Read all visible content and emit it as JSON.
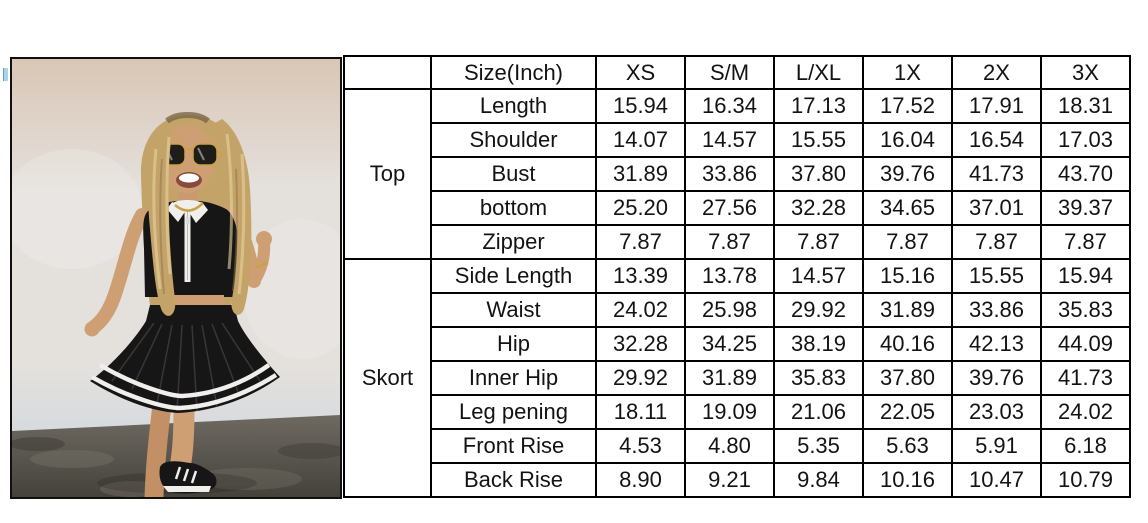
{
  "page": {
    "background": "#ffffff"
  },
  "photo": {
    "alt": "Model in black sleeveless half-zip crop top and black pleated skort with double white hem stripes, standing against a white wall on dark concrete"
  },
  "chart_data": {
    "type": "table",
    "header": {
      "corner": "",
      "size_label": "Size(Inch)",
      "sizes": [
        "XS",
        "S/M",
        "L/XL",
        "1X",
        "2X",
        "3X"
      ]
    },
    "groups": [
      {
        "name": "Top",
        "rows": [
          {
            "label": "Length",
            "values": [
              "15.94",
              "16.34",
              "17.13",
              "17.52",
              "17.91",
              "18.31"
            ]
          },
          {
            "label": "Shoulder",
            "values": [
              "14.07",
              "14.57",
              "15.55",
              "16.04",
              "16.54",
              "17.03"
            ]
          },
          {
            "label": "Bust",
            "values": [
              "31.89",
              "33.86",
              "37.80",
              "39.76",
              "41.73",
              "43.70"
            ]
          },
          {
            "label": "bottom",
            "values": [
              "25.20",
              "27.56",
              "32.28",
              "34.65",
              "37.01",
              "39.37"
            ]
          },
          {
            "label": "Zipper",
            "values": [
              "7.87",
              "7.87",
              "7.87",
              "7.87",
              "7.87",
              "7.87"
            ]
          }
        ]
      },
      {
        "name": "Skort",
        "rows": [
          {
            "label": "Side Length",
            "values": [
              "13.39",
              "13.78",
              "14.57",
              "15.16",
              "15.55",
              "15.94"
            ]
          },
          {
            "label": "Waist",
            "values": [
              "24.02",
              "25.98",
              "29.92",
              "31.89",
              "33.86",
              "35.83"
            ]
          },
          {
            "label": "Hip",
            "values": [
              "32.28",
              "34.25",
              "38.19",
              "40.16",
              "42.13",
              "44.09"
            ]
          },
          {
            "label": "Inner Hip",
            "values": [
              "29.92",
              "31.89",
              "35.83",
              "37.80",
              "39.76",
              "41.73"
            ]
          },
          {
            "label": "Leg pening",
            "values": [
              "18.11",
              "19.09",
              "21.06",
              "22.05",
              "23.03",
              "24.02"
            ]
          },
          {
            "label": "Front Rise",
            "values": [
              "4.53",
              "4.80",
              "5.35",
              "5.63",
              "5.91",
              "6.18"
            ]
          },
          {
            "label": "Back Rise",
            "values": [
              "8.90",
              "9.21",
              "9.84",
              "10.16",
              "10.47",
              "10.79"
            ]
          }
        ]
      }
    ]
  },
  "colors": {
    "page_bg": "#ffffff",
    "table_border": "#000000",
    "table_text": "#131313",
    "wall_top": "#d9c6b6",
    "wall_mid": "#e4e1dd",
    "wall_bottom": "#c9d4e0",
    "floor_light": "#6e6a62",
    "floor_dark": "#45423c",
    "hair": "#c4a368",
    "hair_shadow": "#8a744e",
    "hair_highlight": "#e8d49f",
    "skin": "#cf9f74",
    "skin_shadow": "#c29064",
    "outfit_black": "#161616",
    "stripe_white": "#f0efec",
    "gold": "#c9a24a"
  }
}
